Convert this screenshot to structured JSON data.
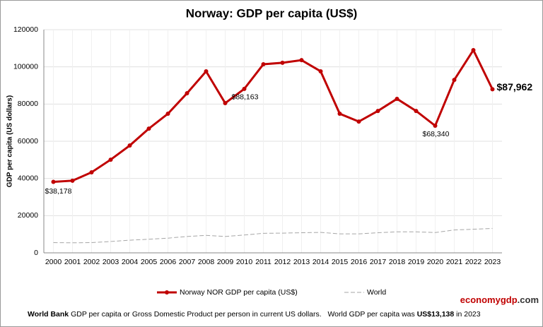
{
  "chart_data": {
    "type": "line",
    "title": "Norway: GDP per capita (US$)",
    "y_label": "GDP per capita (US dollars)",
    "categories": [
      "2000",
      "2001",
      "2002",
      "2003",
      "2004",
      "2005",
      "2006",
      "2007",
      "2008",
      "2009",
      "2010",
      "2011",
      "2012",
      "2013",
      "2014",
      "2015",
      "2016",
      "2017",
      "2018",
      "2019",
      "2020",
      "2021",
      "2022",
      "2023"
    ],
    "series": [
      {
        "name": "Norway NOR GDP per capita (US$)",
        "color": "#c00000",
        "values": [
          38178,
          38800,
          43300,
          50100,
          57700,
          66800,
          74800,
          85800,
          97600,
          80500,
          88163,
          101400,
          102200,
          103600,
          97600,
          74800,
          70600,
          76300,
          82800,
          76300,
          68340,
          93000,
          109000,
          87962
        ],
        "value_labels": [
          "$38,178",
          null,
          null,
          null,
          null,
          null,
          null,
          null,
          null,
          null,
          "$88,163",
          null,
          null,
          null,
          null,
          null,
          null,
          null,
          null,
          null,
          "$68,340",
          null,
          null,
          "$87,962"
        ]
      },
      {
        "name": "World",
        "color": "#a6a6a6",
        "values": [
          5500,
          5400,
          5500,
          6100,
          6800,
          7300,
          7900,
          8800,
          9400,
          8800,
          9600,
          10500,
          10600,
          10800,
          11000,
          10200,
          10200,
          10800,
          11300,
          11300,
          10900,
          12300,
          12700,
          13138
        ]
      }
    ],
    "ylim": [
      0,
      120000
    ],
    "yticks": [
      0,
      20000,
      40000,
      60000,
      80000,
      100000,
      120000
    ],
    "grid": true,
    "brand": [
      "economy",
      "gdp",
      ".com"
    ],
    "footnote": [
      "World Bank",
      " GDP per capita or Gross Domestic Product per person in current US dollars.   World GDP per capita was ",
      "US$13,138",
      " in 2023"
    ]
  }
}
